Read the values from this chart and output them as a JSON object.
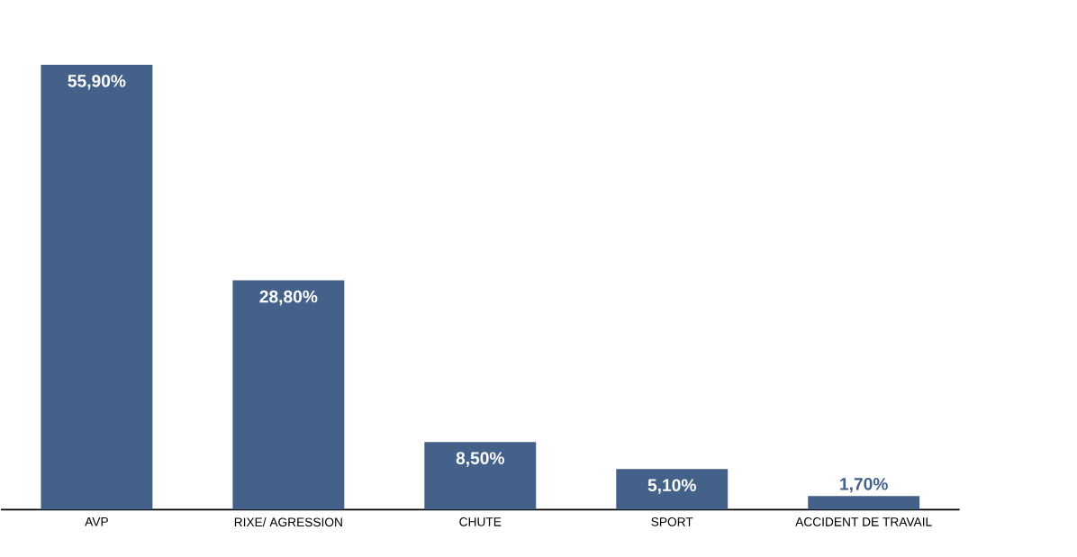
{
  "chart_data": {
    "type": "bar",
    "categories": [
      "AVP",
      "RIXE/ AGRESSION",
      "CHUTE",
      "SPORT",
      "ACCIDENT DE TRAVAIL"
    ],
    "values": [
      55.9,
      28.8,
      8.5,
      5.1,
      1.7
    ],
    "value_labels": [
      "55,90%",
      "28,80%",
      "8,50%",
      "5,10%",
      "1,70%"
    ],
    "color": "#44618a",
    "tick_labels": "x"
  }
}
